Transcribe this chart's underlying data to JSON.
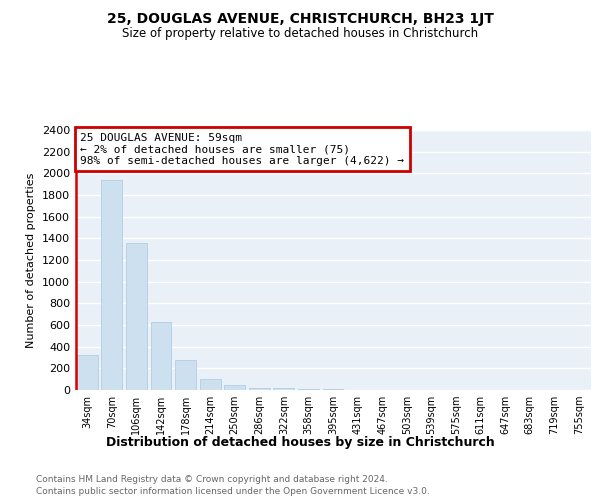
{
  "title": "25, DOUGLAS AVENUE, CHRISTCHURCH, BH23 1JT",
  "subtitle": "Size of property relative to detached houses in Christchurch",
  "xlabel": "Distribution of detached houses by size in Christchurch",
  "ylabel": "Number of detached properties",
  "annotation_title": "25 DOUGLAS AVENUE: 59sqm",
  "annotation_line2": "← 2% of detached houses are smaller (75)",
  "annotation_line3": "98% of semi-detached houses are larger (4,622) →",
  "bar_color": "#cce0f0",
  "bar_edge_color": "#aac8e0",
  "highlight_color": "#dd0000",
  "categories": [
    "34sqm",
    "70sqm",
    "106sqm",
    "142sqm",
    "178sqm",
    "214sqm",
    "250sqm",
    "286sqm",
    "322sqm",
    "358sqm",
    "395sqm",
    "431sqm",
    "467sqm",
    "503sqm",
    "539sqm",
    "575sqm",
    "611sqm",
    "647sqm",
    "683sqm",
    "719sqm",
    "755sqm"
  ],
  "values": [
    320,
    1940,
    1360,
    625,
    280,
    100,
    45,
    20,
    15,
    10,
    5,
    0,
    0,
    0,
    0,
    0,
    0,
    0,
    0,
    0,
    0
  ],
  "ylim": [
    0,
    2400
  ],
  "yticks": [
    0,
    200,
    400,
    600,
    800,
    1000,
    1200,
    1400,
    1600,
    1800,
    2000,
    2200,
    2400
  ],
  "footer_line1": "Contains HM Land Registry data © Crown copyright and database right 2024.",
  "footer_line2": "Contains public sector information licensed under the Open Government Licence v3.0.",
  "bg_color": "#ffffff",
  "plot_bg_color": "#eaf0f8",
  "grid_color": "#ffffff"
}
